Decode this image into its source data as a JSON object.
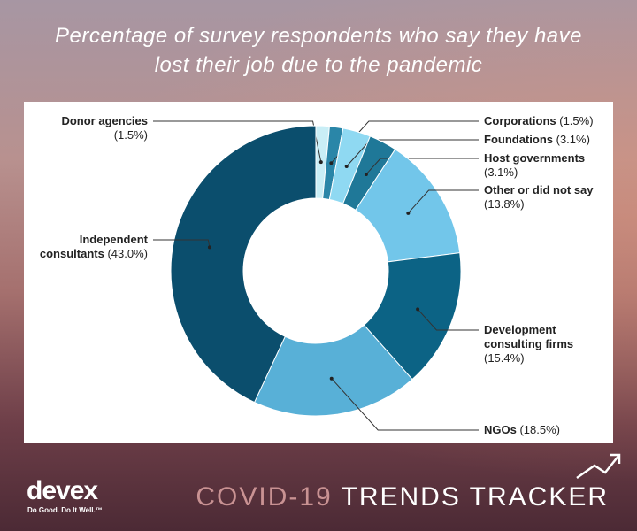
{
  "chart_data": {
    "type": "donut",
    "title": "Percentage of survey respondents who say they have lost their job due to the pandemic",
    "categories": [
      "Donor agencies",
      "Corporations",
      "Foundations",
      "Host governments",
      "Other or did not say",
      "Development consulting firms",
      "NGOs",
      "Independent consultants"
    ],
    "values": [
      1.5,
      1.5,
      3.1,
      3.1,
      13.8,
      15.4,
      18.5,
      43.0
    ],
    "value_labels": [
      "(1.5%)",
      "(1.5%)",
      "(3.1%)",
      "(3.1%)",
      "(13.8%)",
      "(15.4%)",
      "(18.5%)",
      "(43.0%)"
    ],
    "colors": [
      "#c9eef6",
      "#2a86a8",
      "#8fd9f2",
      "#1f7898",
      "#72c6ea",
      "#0c6385",
      "#58b0d7",
      "#0b4e6d"
    ]
  },
  "footer": {
    "logo": "devex",
    "tagline": "Do Good. Do It Well.™",
    "tracker_prefix": "COVID-19",
    "tracker_name": "TRENDS TRACKER"
  }
}
